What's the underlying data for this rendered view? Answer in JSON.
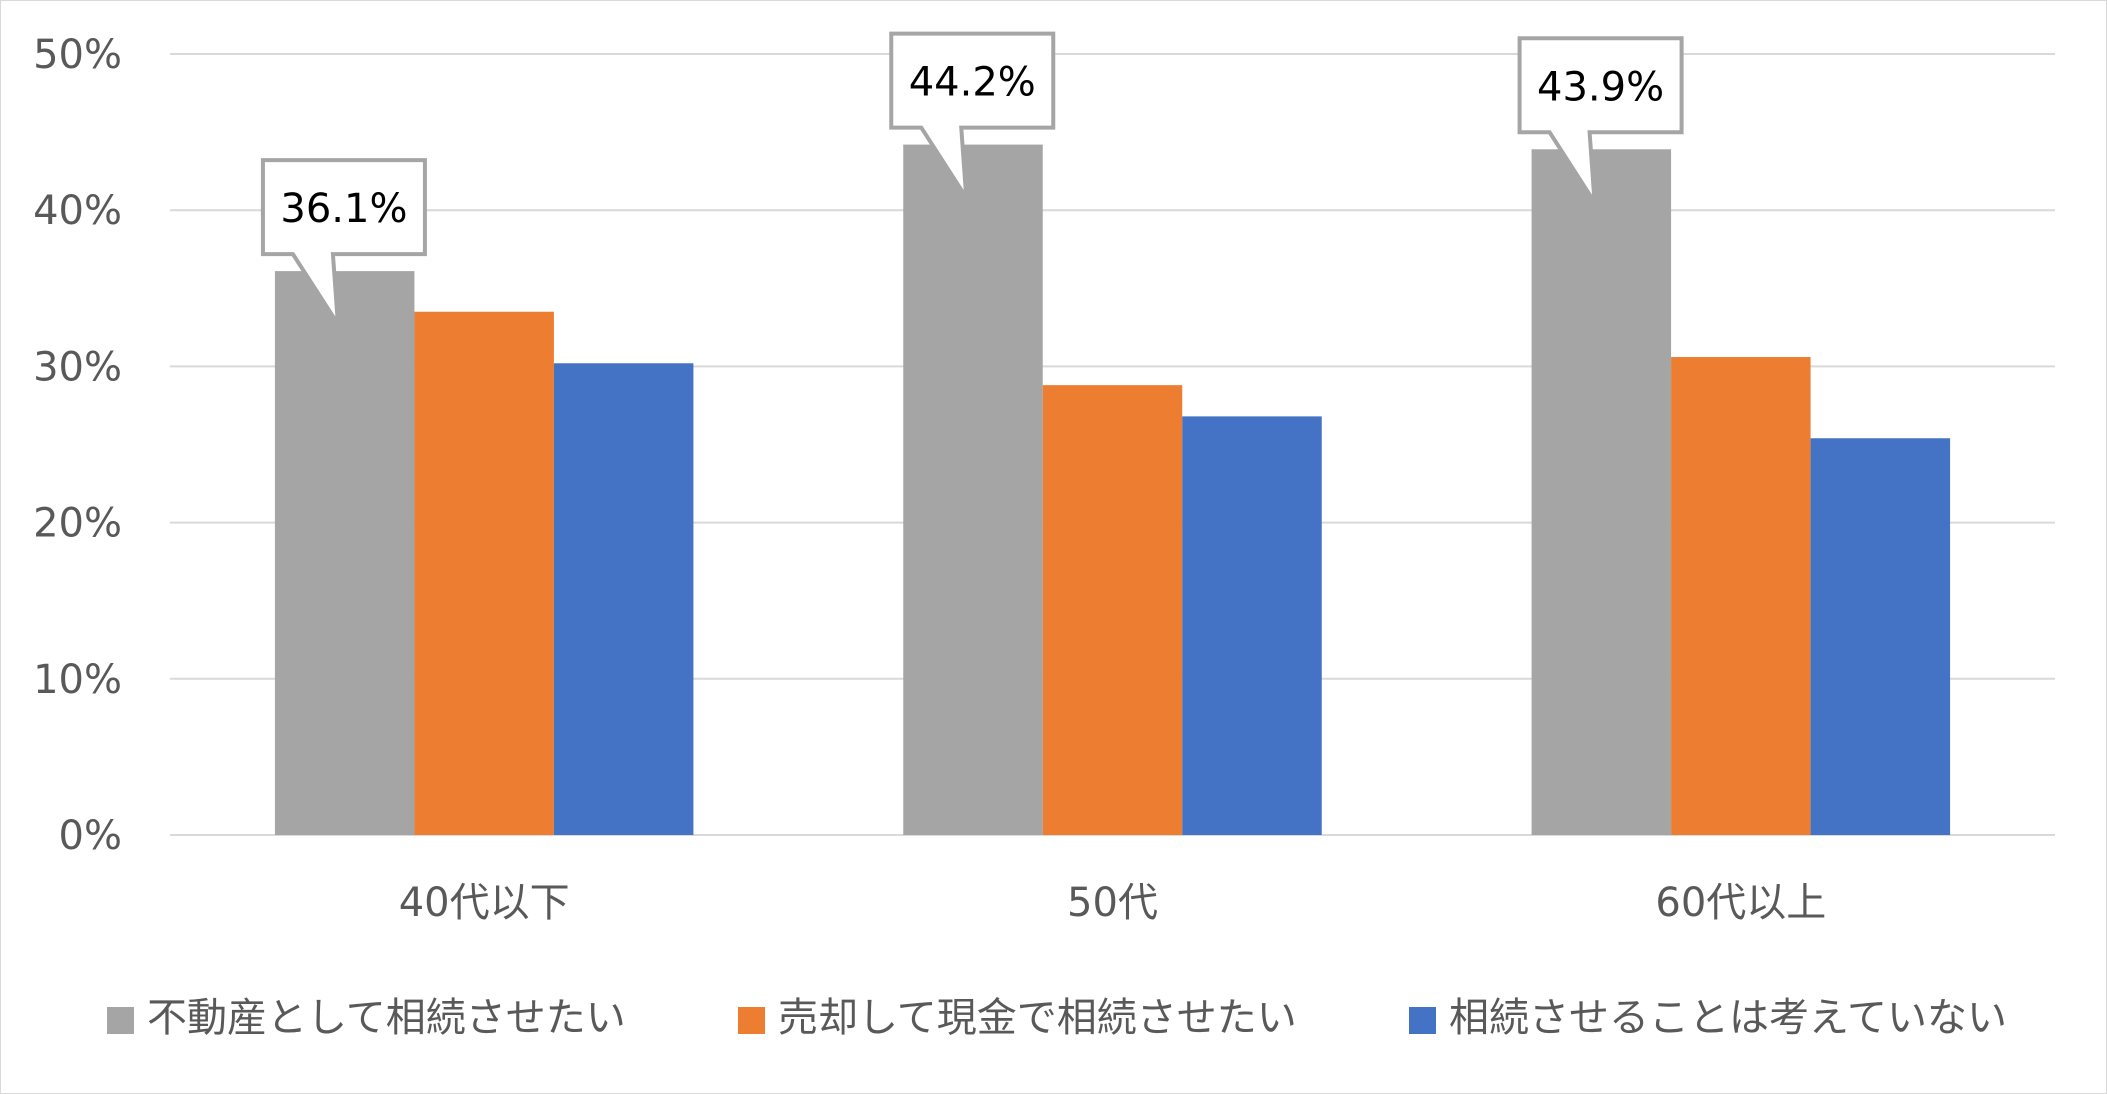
{
  "chart_data": {
    "type": "bar",
    "categories": [
      "40代以下",
      "50代",
      "60代以上"
    ],
    "series": [
      {
        "name": "不動産として相続させたい",
        "values": [
          36.1,
          44.2,
          43.9
        ],
        "color": "#a5a5a5"
      },
      {
        "name": "売却して現金で相続させたい",
        "values": [
          33.5,
          28.8,
          30.6
        ],
        "color": "#ed7d31"
      },
      {
        "name": "相続させることは考えていない",
        "values": [
          30.2,
          26.8,
          25.4
        ],
        "color": "#4472c4"
      }
    ],
    "y_ticks": [
      "0%",
      "10%",
      "20%",
      "30%",
      "40%",
      "50%"
    ],
    "ylim": [
      0,
      50
    ],
    "grid": true,
    "legend_position": "bottom",
    "callouts": [
      {
        "series": 0,
        "category": 0,
        "text": "36.1%"
      },
      {
        "series": 0,
        "category": 1,
        "text": "44.2%"
      },
      {
        "series": 0,
        "category": 2,
        "text": "43.9%"
      }
    ],
    "title": "",
    "xlabel": "",
    "ylabel": ""
  },
  "colors": {
    "grid": "#d9d9d9",
    "axis_text": "#595959",
    "callout_border": "#a5a5a5"
  }
}
